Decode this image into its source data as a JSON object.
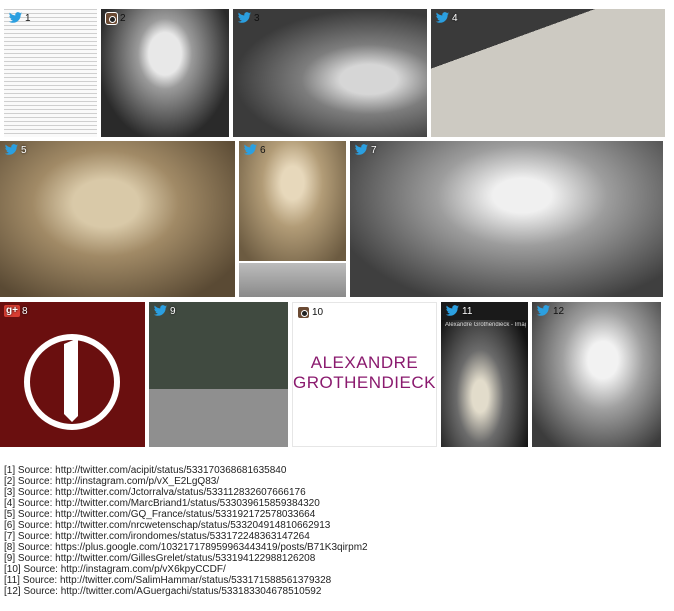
{
  "tiles": [
    {
      "num": "1",
      "service": "twitter"
    },
    {
      "num": "2",
      "service": "instagram"
    },
    {
      "num": "3",
      "service": "twitter"
    },
    {
      "num": "4",
      "service": "twitter"
    },
    {
      "num": "5",
      "service": "twitter"
    },
    {
      "num": "6",
      "service": "twitter"
    },
    {
      "num": "7",
      "service": "twitter"
    },
    {
      "num": "8",
      "service": "google-plus"
    },
    {
      "num": "9",
      "service": "twitter"
    },
    {
      "num": "10",
      "service": "instagram"
    },
    {
      "num": "11",
      "service": "twitter"
    },
    {
      "num": "12",
      "service": "twitter"
    }
  ],
  "tile10_text": [
    "ALEXANDRE",
    "GROTHENDIECK"
  ],
  "tile11_caption": "Alexandre Grothendieck - Imag...",
  "gplus_label": "g+",
  "sources": [
    "[1] Source: http://twitter.com/acipit/status/533170368681635840",
    "[2] Source: http://instagram.com/p/vX_E2LgQ83/",
    "[3] Source: http://twitter.com/Jctorralva/status/533112832607666176",
    "[4] Source: http://twitter.com/MarcBriand1/status/533039615859384320",
    "[5] Source: http://twitter.com/GQ_France/status/533192172578033664",
    "[6] Source: http://twitter.com/nrcwetenschap/status/533204914810662913",
    "[7] Source: http://twitter.com/irondomes/status/533172248363147264",
    "[8] Source: https://plus.google.com/103217178959963443419/posts/B71K3qirpm2",
    "[9] Source: http://twitter.com/GillesGrelet/status/533194122988126208",
    "[10] Source: http://instagram.com/p/vX6kpyCCDF/",
    "[11] Source: http://twitter.com/SalimHammar/status/533171588561379328",
    "[12] Source: http://twitter.com/AGuergachi/status/533183304678510592"
  ],
  "colors": {
    "twitter": "#2b9fe0",
    "gplus_bg": "#6a0f0f",
    "name_text": "#8a1a6e"
  }
}
